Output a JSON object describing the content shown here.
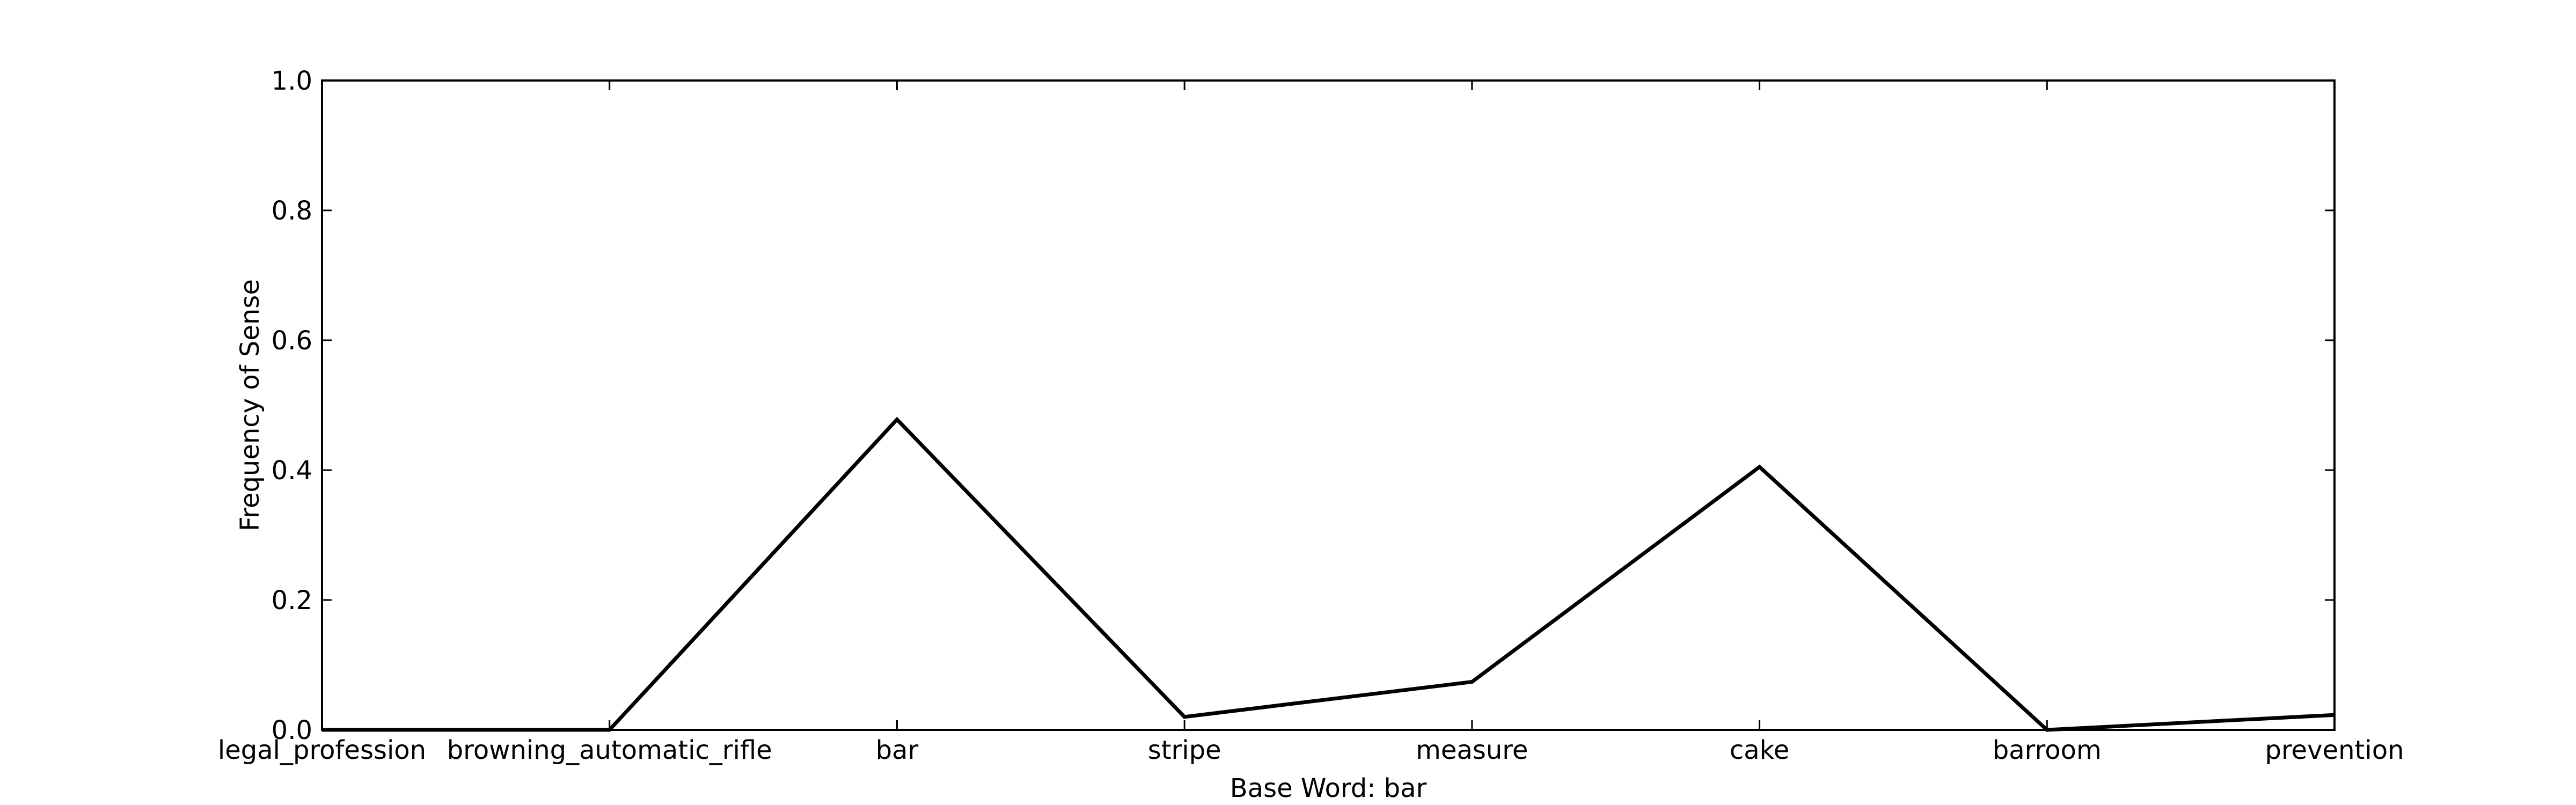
{
  "chart_data": {
    "type": "line",
    "title": "",
    "xlabel": "Base Word: bar",
    "ylabel": "Frequency of Sense",
    "categories": [
      "legal_profession",
      "browning_automatic_rifle",
      "bar",
      "stripe",
      "measure",
      "cake",
      "barroom",
      "prevention"
    ],
    "series": [
      {
        "values": [
          0.0,
          0.0,
          0.478,
          0.02,
          0.074,
          0.405,
          0.0,
          0.023
        ]
      }
    ],
    "ylim": [
      0,
      1.0
    ],
    "yticks": [
      "0.0",
      "0.2",
      "0.4",
      "0.6",
      "0.8",
      "1.0"
    ],
    "grid": false,
    "legend": "none",
    "line_color": "#000000"
  }
}
